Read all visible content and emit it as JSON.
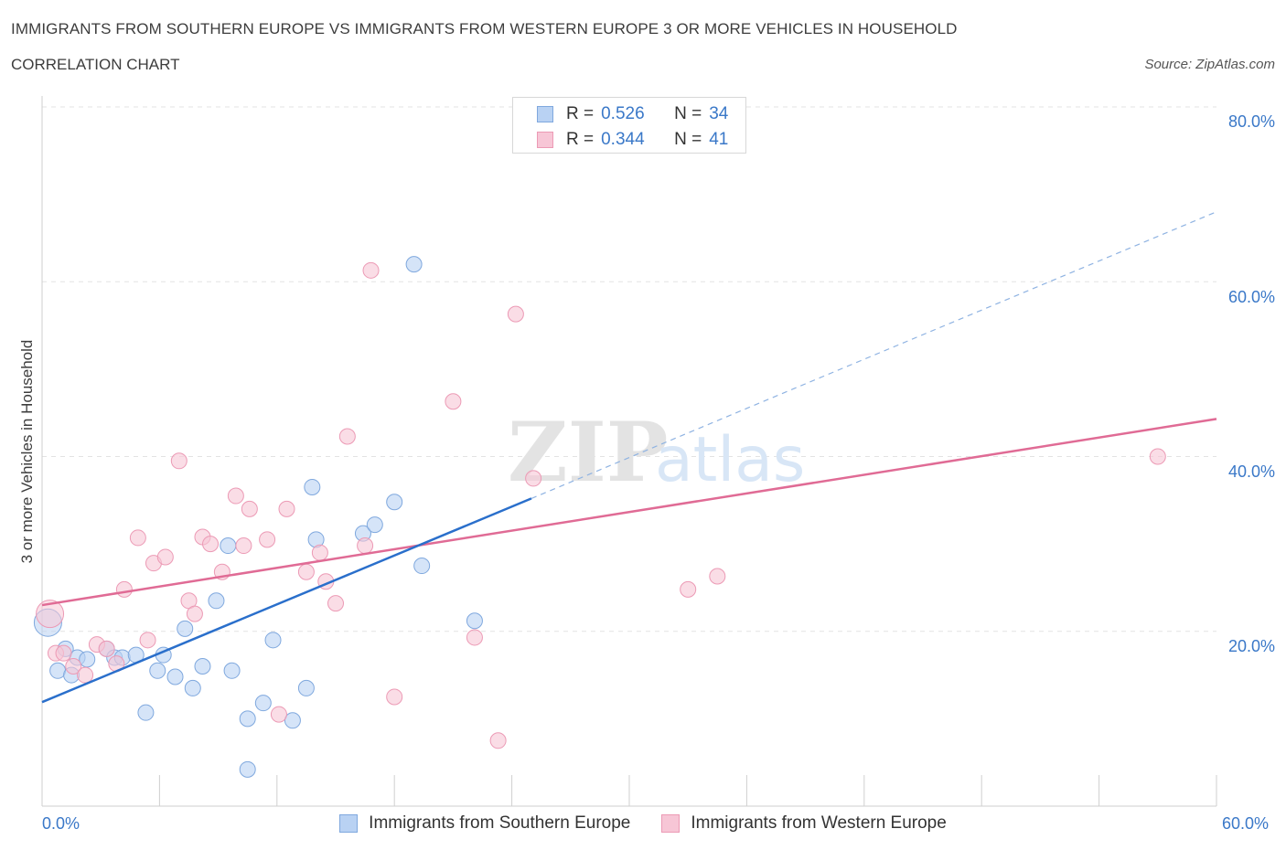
{
  "header": {
    "title": "IMMIGRANTS FROM SOUTHERN EUROPE VS IMMIGRANTS FROM WESTERN EUROPE 3 OR MORE VEHICLES IN HOUSEHOLD",
    "subtitle": "CORRELATION CHART",
    "source": "Source: ZipAtlas.com"
  },
  "watermark": {
    "zip": "ZIP",
    "atlas": "atlas"
  },
  "legend": {
    "series1": {
      "r_label": "R =",
      "r_value": "0.526",
      "n_label": "N =",
      "n_value": "34"
    },
    "series2": {
      "r_label": "R =",
      "r_value": "0.344",
      "n_label": "N =",
      "n_value": "41"
    }
  },
  "colors": {
    "blue_fill": "#b9d2f3",
    "blue_stroke": "#7fa8de",
    "blue_line": "#2a6fcb",
    "pink_fill": "#f7c6d6",
    "pink_stroke": "#ec9ab5",
    "pink_line": "#e06b95",
    "tick_text": "#3a78c8",
    "grid": "#e3e3e3"
  },
  "chart_data": {
    "type": "scatter",
    "xlabel": "",
    "ylabel": "3 or more Vehicles in Household",
    "xlim": [
      0,
      60
    ],
    "ylim": [
      0,
      80
    ],
    "x_tick_labels": [
      "0.0%",
      "60.0%"
    ],
    "y_tick_labels": [
      "20.0%",
      "40.0%",
      "60.0%",
      "80.0%"
    ],
    "y_ticks": [
      20,
      40,
      60,
      80
    ],
    "grid": true,
    "legend_position": "top-center",
    "series": [
      {
        "name": "Immigrants from Southern Europe",
        "color": "#b9d2f3",
        "points": [
          [
            0.3,
            21.0
          ],
          [
            0.8,
            15.5
          ],
          [
            1.2,
            18.0
          ],
          [
            1.5,
            15.0
          ],
          [
            1.8,
            17.0
          ],
          [
            2.3,
            16.8
          ],
          [
            3.3,
            18.0
          ],
          [
            3.7,
            17.0
          ],
          [
            4.1,
            17.0
          ],
          [
            4.8,
            17.3
          ],
          [
            5.3,
            10.7
          ],
          [
            5.9,
            15.5
          ],
          [
            6.2,
            17.3
          ],
          [
            6.8,
            14.8
          ],
          [
            7.3,
            20.3
          ],
          [
            7.7,
            13.5
          ],
          [
            8.2,
            16.0
          ],
          [
            8.9,
            23.5
          ],
          [
            9.5,
            29.8
          ],
          [
            9.7,
            15.5
          ],
          [
            10.5,
            10.0
          ],
          [
            10.5,
            4.2
          ],
          [
            11.3,
            11.8
          ],
          [
            11.8,
            19.0
          ],
          [
            12.8,
            9.8
          ],
          [
            13.5,
            13.5
          ],
          [
            13.8,
            36.5
          ],
          [
            14.0,
            30.5
          ],
          [
            16.4,
            31.2
          ],
          [
            17.0,
            32.2
          ],
          [
            18.0,
            34.8
          ],
          [
            19.0,
            62.0
          ],
          [
            19.4,
            27.5
          ],
          [
            22.1,
            21.2
          ]
        ]
      },
      {
        "name": "Immigrants from Western Europe",
        "color": "#f7c6d6",
        "points": [
          [
            0.4,
            22.0
          ],
          [
            0.7,
            17.5
          ],
          [
            1.1,
            17.5
          ],
          [
            1.6,
            16.0
          ],
          [
            2.2,
            15.0
          ],
          [
            2.8,
            18.5
          ],
          [
            3.3,
            18.0
          ],
          [
            3.8,
            16.3
          ],
          [
            4.2,
            24.8
          ],
          [
            4.9,
            30.7
          ],
          [
            5.4,
            19.0
          ],
          [
            5.7,
            27.8
          ],
          [
            6.3,
            28.5
          ],
          [
            7.0,
            39.5
          ],
          [
            7.5,
            23.5
          ],
          [
            7.8,
            22.0
          ],
          [
            8.2,
            30.8
          ],
          [
            8.6,
            30.0
          ],
          [
            9.2,
            26.8
          ],
          [
            9.9,
            35.5
          ],
          [
            10.3,
            29.8
          ],
          [
            10.6,
            34.0
          ],
          [
            11.5,
            30.5
          ],
          [
            12.1,
            10.5
          ],
          [
            12.5,
            34.0
          ],
          [
            13.5,
            26.8
          ],
          [
            14.2,
            29.0
          ],
          [
            14.5,
            25.7
          ],
          [
            15.0,
            23.2
          ],
          [
            15.6,
            42.3
          ],
          [
            16.5,
            29.8
          ],
          [
            16.8,
            61.3
          ],
          [
            18.0,
            12.5
          ],
          [
            21.0,
            46.3
          ],
          [
            22.1,
            19.3
          ],
          [
            23.3,
            7.5
          ],
          [
            24.2,
            56.3
          ],
          [
            25.1,
            37.5
          ],
          [
            33.0,
            24.8
          ],
          [
            34.5,
            26.3
          ],
          [
            57.0,
            40.0
          ]
        ]
      }
    ],
    "trend_lines": [
      {
        "series": "Immigrants from Southern Europe",
        "from": [
          0,
          11.9
        ],
        "to": [
          25,
          35.2
        ],
        "dashed_to": [
          60,
          68.0
        ]
      },
      {
        "series": "Immigrants from Western Europe",
        "from": [
          0,
          23.0
        ],
        "to": [
          60,
          44.3
        ]
      }
    ]
  }
}
